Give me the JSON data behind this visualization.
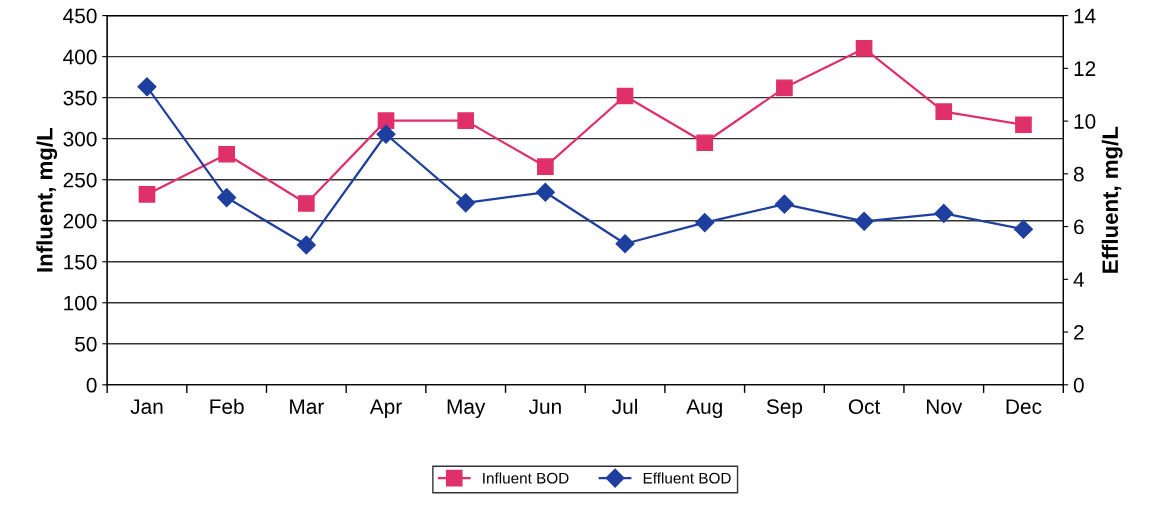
{
  "chart_data": {
    "type": "line",
    "xlabel": null,
    "ylabel": "Influent, mg/L",
    "y2label": "Effluent, mg/L",
    "categories": [
      "Jan",
      "Feb",
      "Mar",
      "Apr",
      "May",
      "Jun",
      "Jul",
      "Aug",
      "Sep",
      "Oct",
      "Nov",
      "Dec"
    ],
    "series": [
      {
        "name": "Influent BOD",
        "color": "#e0306a",
        "marker": "square",
        "values": [
          232,
          281,
          221,
          322,
          322,
          266,
          352,
          295,
          362,
          410,
          333,
          317
        ]
      },
      {
        "name": "Effluent BOD",
        "color": "#1f3f9f",
        "marker": "diamond",
        "axis": "y2",
        "values": [
          11.3,
          7.1,
          5.3,
          9.5,
          6.9,
          7.3,
          5.35,
          6.15,
          6.85,
          6.2,
          6.5,
          5.9
        ]
      }
    ],
    "ylim": [
      0,
      450
    ],
    "yticks": [
      0,
      50,
      100,
      150,
      200,
      250,
      300,
      350,
      400,
      450
    ],
    "y2lim": [
      0,
      14
    ],
    "y2ticks": [
      0,
      2,
      4,
      6,
      8,
      10,
      12,
      14
    ],
    "grid": "y",
    "legend": "bottom"
  }
}
